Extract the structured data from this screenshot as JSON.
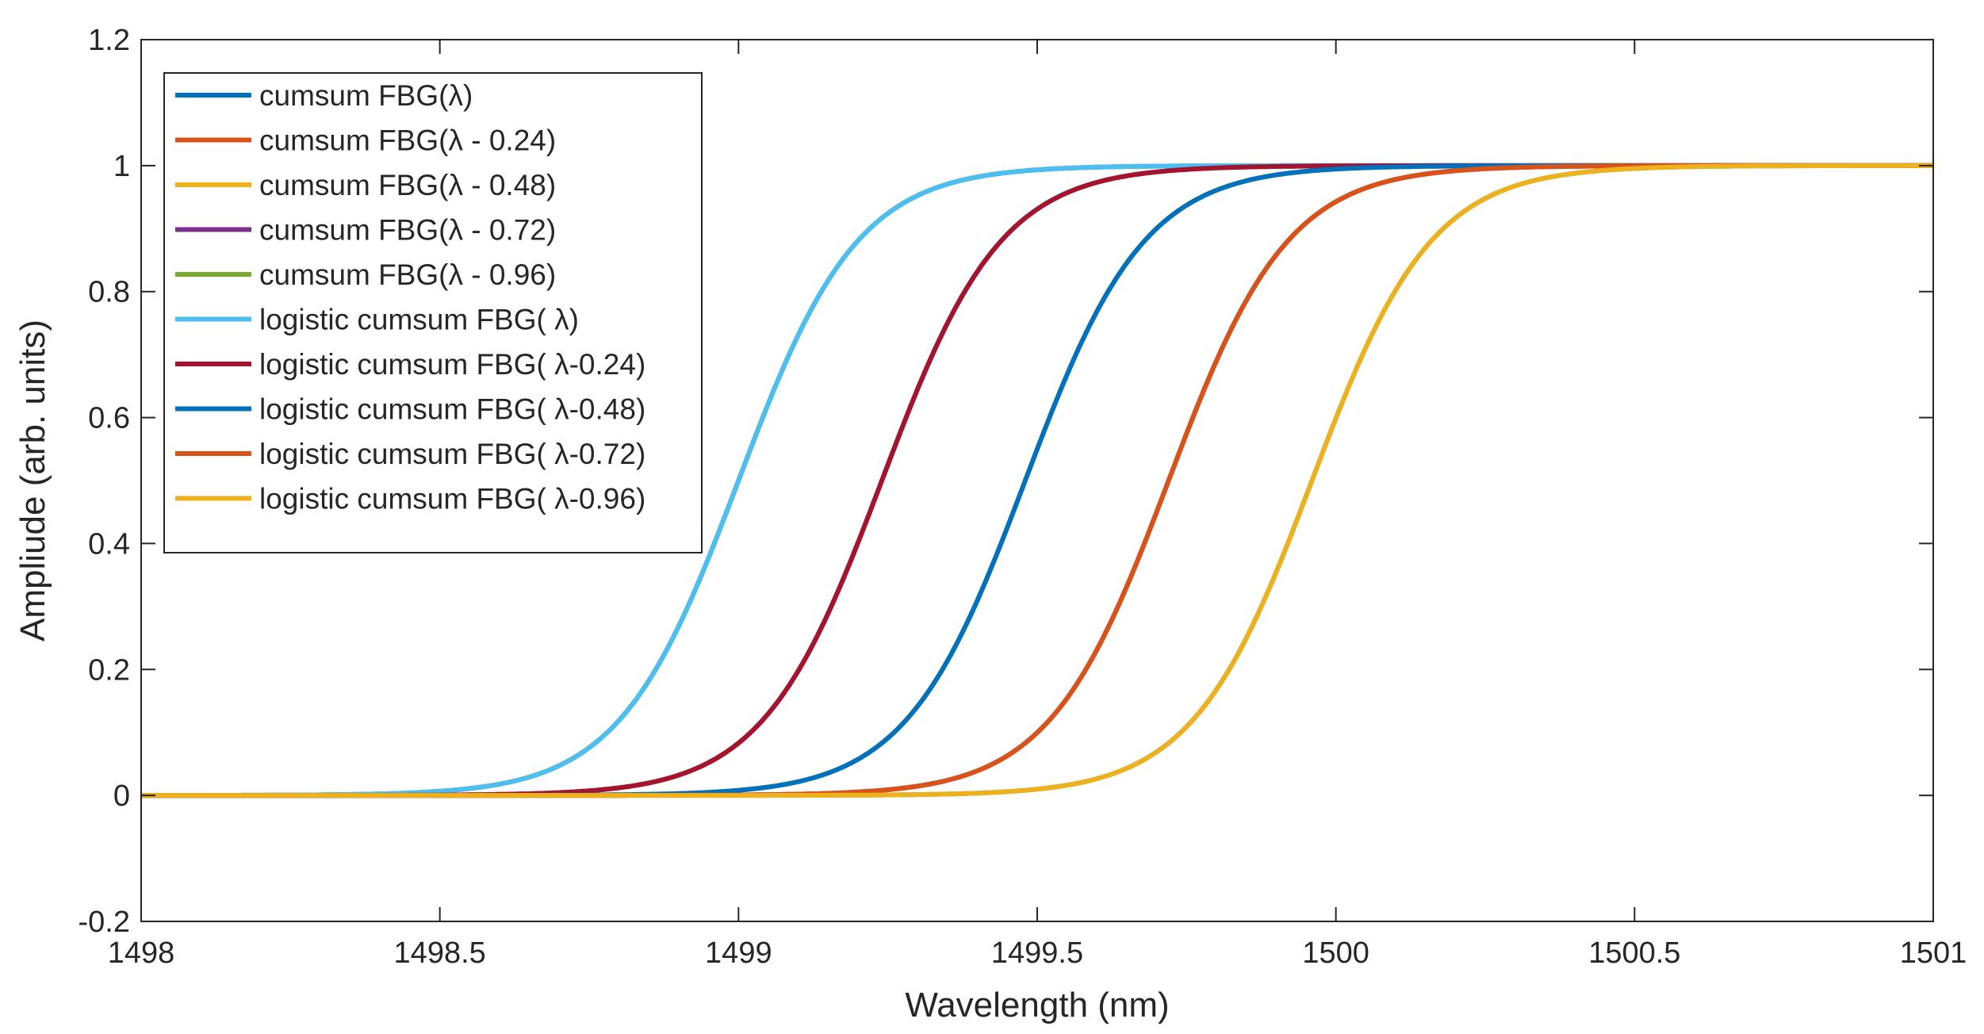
{
  "chart_data": {
    "type": "line",
    "title": "",
    "xlabel": "Wavelength (nm)",
    "ylabel": "Ampliude (arb. units)",
    "xlim": [
      1498,
      1501
    ],
    "ylim": [
      -0.2,
      1.2
    ],
    "xticks": [
      1498,
      1498.5,
      1499,
      1499.5,
      1500,
      1500.5,
      1501
    ],
    "xtick_labels": [
      "1498",
      "1498.5",
      "1499",
      "1499.5",
      "1500",
      "1500.5",
      "1501"
    ],
    "yticks": [
      -0.2,
      0,
      0.2,
      0.4,
      0.6,
      0.8,
      1,
      1.2
    ],
    "ytick_labels": [
      "-0.2",
      "0",
      "0.2",
      "0.4",
      "0.6",
      "0.8",
      "1",
      "1.2"
    ],
    "grid": false,
    "legend_position": "top-left",
    "series": [
      {
        "name": "cumsum FBG(λ)",
        "color": "#0072BD",
        "center": 1499.0,
        "width": 0.1
      },
      {
        "name": "cumsum FBG(λ - 0.24)",
        "color": "#D95319",
        "center": 1499.24,
        "width": 0.1
      },
      {
        "name": "cumsum FBG(λ - 0.48)",
        "color": "#EDB120",
        "center": 1499.48,
        "width": 0.1
      },
      {
        "name": "cumsum FBG(λ - 0.72)",
        "color": "#7E2F8E",
        "center": 1499.72,
        "width": 0.1
      },
      {
        "name": "cumsum FBG(λ - 0.96)",
        "color": "#77AC30",
        "center": 1499.96,
        "width": 0.1
      },
      {
        "name": "logistic cumsum FBG( λ)",
        "color": "#4DBEEE",
        "center": 1499.0,
        "width": 0.1
      },
      {
        "name": "logistic cumsum FBG( λ-0.24)",
        "color": "#A2142F",
        "center": 1499.24,
        "width": 0.1
      },
      {
        "name": "logistic cumsum FBG( λ-0.48)",
        "color": "#0072BD",
        "center": 1499.48,
        "width": 0.1
      },
      {
        "name": "logistic cumsum FBG( λ-0.72)",
        "color": "#D95319",
        "center": 1499.72,
        "width": 0.1
      },
      {
        "name": "logistic cumsum FBG( λ-0.96)",
        "color": "#EDB120",
        "center": 1499.96,
        "width": 0.1
      }
    ]
  }
}
